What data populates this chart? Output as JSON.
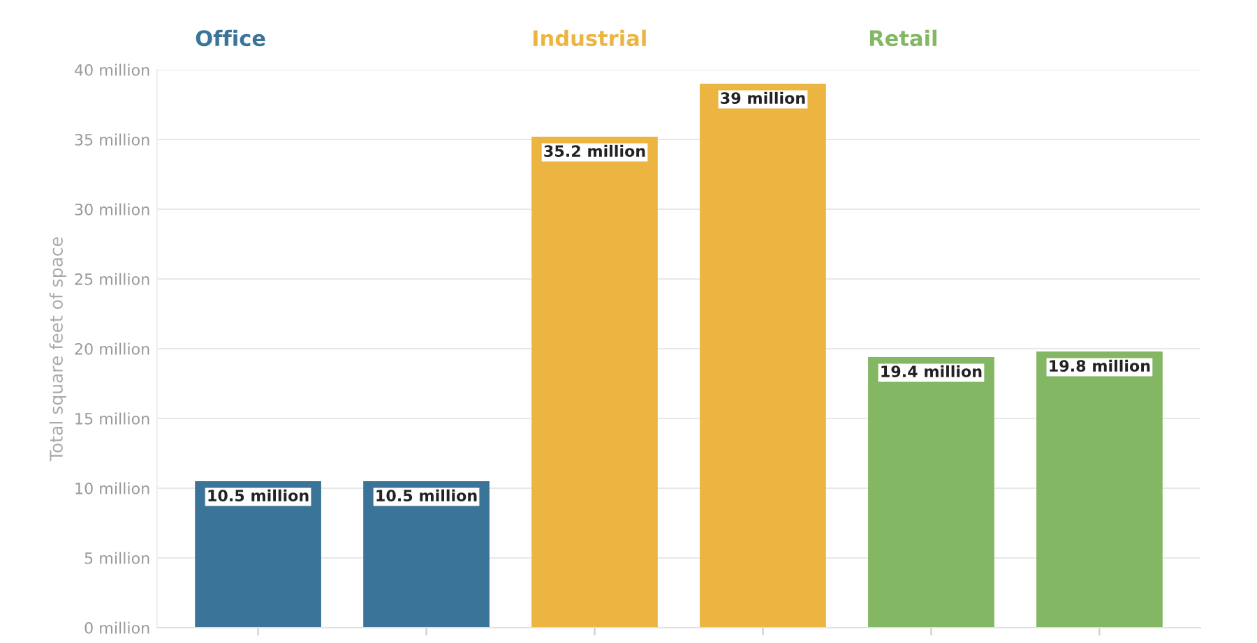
{
  "chart_data": {
    "type": "bar",
    "ylabel": "Total square feet of space",
    "categories": [
      null,
      null,
      null,
      null,
      null,
      null
    ],
    "series": [
      {
        "name": "Office",
        "color": "#3a7599",
        "values": [
          10500000,
          10500000,
          null,
          null,
          null,
          null
        ],
        "value_labels": [
          "10.5 million",
          "10.5 million",
          null,
          null,
          null,
          null
        ]
      },
      {
        "name": "Industrial",
        "color": "#ecb542",
        "values": [
          null,
          null,
          35200000,
          39000000,
          null,
          null
        ],
        "value_labels": [
          null,
          null,
          "35.2 million",
          "39 million",
          null,
          null
        ]
      },
      {
        "name": "Retail",
        "color": "#83b763",
        "values": [
          null,
          null,
          null,
          null,
          19400000,
          19800000
        ],
        "value_labels": [
          null,
          null,
          null,
          null,
          "19.4 million",
          "19.8 million"
        ]
      }
    ],
    "ylim": [
      0,
      40000000
    ],
    "yticks": [
      {
        "value": 0,
        "label": "0 million"
      },
      {
        "value": 5000000,
        "label": "5 million"
      },
      {
        "value": 10000000,
        "label": "10 million"
      },
      {
        "value": 15000000,
        "label": "15 million"
      },
      {
        "value": 20000000,
        "label": "20 million"
      },
      {
        "value": 25000000,
        "label": "25 million"
      },
      {
        "value": 30000000,
        "label": "30 million"
      },
      {
        "value": 35000000,
        "label": "35 million"
      },
      {
        "value": 40000000,
        "label": "40 million"
      }
    ],
    "grid": "y",
    "tick_labels": "y"
  }
}
